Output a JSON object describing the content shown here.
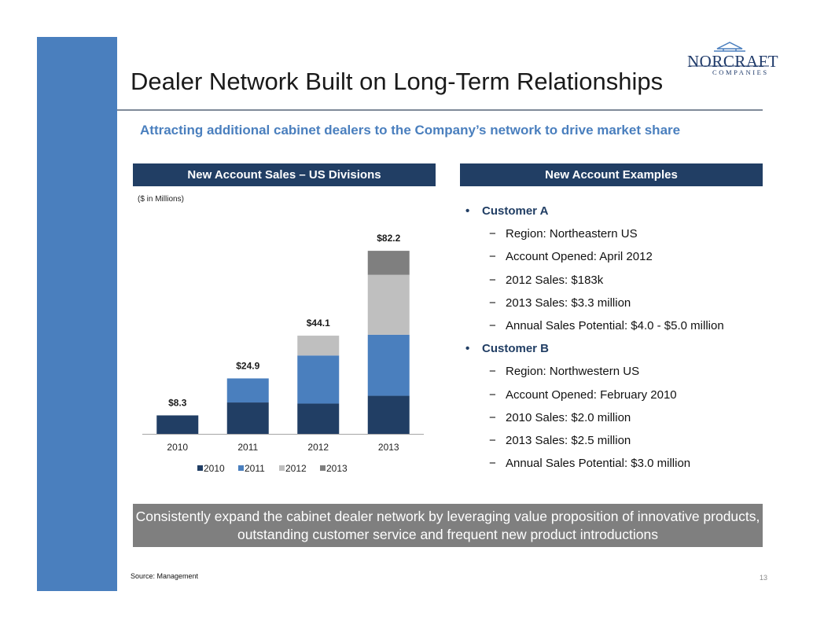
{
  "slide": {
    "title": "Dealer Network Built on Long-Term Relationships",
    "subtitle": "Attracting additional cabinet dealers to the Company’s network to drive market share",
    "page_number": "13",
    "source": "Source: Management"
  },
  "logo": {
    "name": "NORCRAFT",
    "sub": "COMPANIES"
  },
  "left_panel": {
    "header": "New Account Sales – US Divisions",
    "units": "($ in Millions)"
  },
  "right_panel": {
    "header": "New Account Examples",
    "customers": [
      {
        "name": "Customer A",
        "details": [
          "Region: Northeastern US",
          "Account Opened: April 2012",
          "2012 Sales: $183k",
          "2013 Sales: $3.3 million",
          "Annual Sales Potential: $4.0 - $5.0 million"
        ]
      },
      {
        "name": "Customer B",
        "details": [
          "Region: Northwestern US",
          "Account Opened: February 2010",
          "2010 Sales: $2.0 million",
          "2013 Sales: $2.5 million",
          "Annual Sales Potential: $3.0 million"
        ]
      }
    ]
  },
  "banner": "Consistently expand the cabinet dealer network by leveraging value proposition of innovative products, outstanding customer service and frequent new product introductions",
  "chart_data": {
    "type": "bar",
    "stacked": true,
    "title": "New Account Sales – US Divisions",
    "ylabel": "($ in Millions)",
    "categories": [
      "2010",
      "2011",
      "2012",
      "2013"
    ],
    "series": [
      {
        "name": "2010",
        "color": "#213e64",
        "values": [
          8.3,
          14.1,
          13.6,
          17.1
        ]
      },
      {
        "name": "2011",
        "color": "#4a7fbe",
        "values": [
          0,
          10.8,
          21.6,
          27.4
        ]
      },
      {
        "name": "2012",
        "color": "#bfbfbf",
        "values": [
          0,
          0,
          8.9,
          26.9
        ]
      },
      {
        "name": "2013",
        "color": "#7f7f7f",
        "values": [
          0,
          0,
          0,
          10.8
        ]
      }
    ],
    "totals": [
      "$8.3",
      "$24.9",
      "$44.1",
      "$82.2"
    ],
    "ylim": [
      0,
      90
    ],
    "legend": "bottom"
  }
}
